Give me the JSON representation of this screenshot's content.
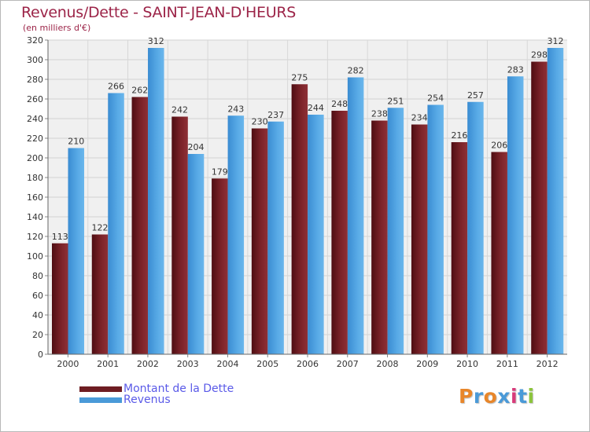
{
  "title": "Revenus/Dette - SAINT-JEAN-D'HEURS",
  "subtitle": "(en milliers d'€)",
  "logo_text": "Proxiti",
  "colors": {
    "series_dette": "#6e1d22",
    "series_revenus": "#4a9ad8",
    "title": "#9c2448",
    "legend_text": "#5a5ae8",
    "plot_bg": "#f0f0f0"
  },
  "chart_data": {
    "type": "bar",
    "title": "Revenus/Dette - SAINT-JEAN-D'HEURS",
    "subtitle": "(en milliers d'€)",
    "xlabel": "",
    "ylabel": "",
    "categories": [
      "2000",
      "2001",
      "2002",
      "2003",
      "2004",
      "2005",
      "2006",
      "2007",
      "2008",
      "2009",
      "2010",
      "2011",
      "2012"
    ],
    "series": [
      {
        "name": "Montant de la Dette",
        "values": [
          113,
          122,
          262,
          242,
          179,
          230,
          275,
          248,
          238,
          234,
          216,
          206,
          298
        ]
      },
      {
        "name": "Revenus",
        "values": [
          210,
          266,
          312,
          204,
          243,
          237,
          244,
          282,
          251,
          254,
          257,
          283,
          312
        ]
      }
    ],
    "ylim": [
      0,
      320
    ],
    "yticks": [
      0,
      20,
      40,
      60,
      80,
      100,
      120,
      140,
      160,
      180,
      200,
      220,
      240,
      260,
      280,
      300,
      320
    ],
    "grid": true,
    "legend_position": "bottom-left"
  }
}
